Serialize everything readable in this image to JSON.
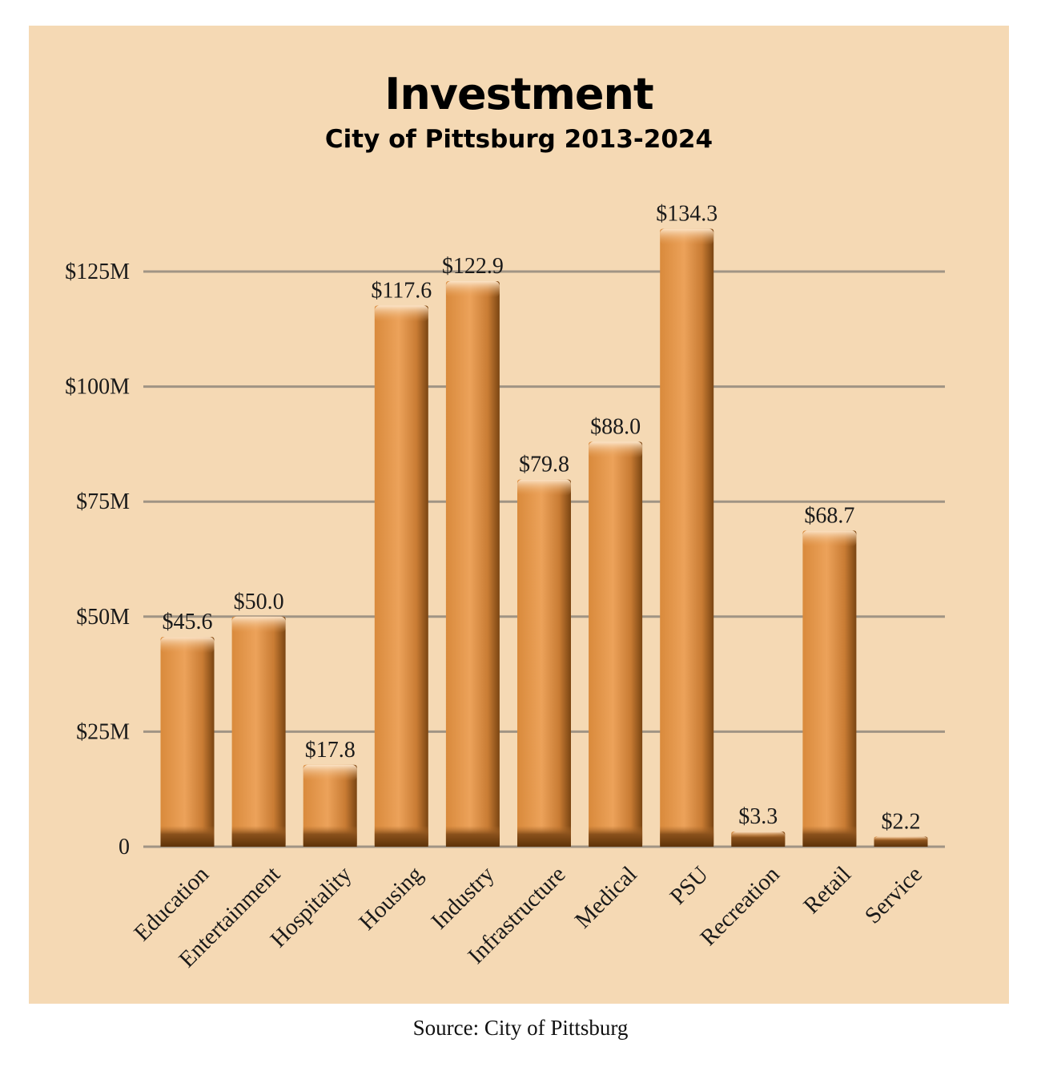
{
  "chart_data": {
    "type": "bar",
    "title": "Investment",
    "subtitle": "City of Pittsburg 2013-2024",
    "categories": [
      "Education",
      "Entertainment",
      "Hospitality",
      "Housing",
      "Industry",
      "Infrastructure",
      "Medical",
      "PSU",
      "Recreation",
      "Retail",
      "Service"
    ],
    "values": [
      45.6,
      50.0,
      17.8,
      117.6,
      122.9,
      79.8,
      88.0,
      134.3,
      3.3,
      68.7,
      2.2
    ],
    "data_labels": [
      "$45.6",
      "$50.0",
      "$17.8",
      "$117.6",
      "$122.9",
      "$79.8",
      "$88.0",
      "$134.3",
      "$3.3",
      "$68.7",
      "$2.2"
    ],
    "yticks": [
      0,
      25,
      50,
      75,
      100,
      125
    ],
    "ytick_labels": [
      "0",
      "$25M",
      "$50M",
      "$75M",
      "$100M",
      "$125M"
    ],
    "ylim": [
      0,
      135
    ],
    "grid": true,
    "bar_color": "#e0954a",
    "background_color": "#f5d9b4"
  },
  "source": "Source: City of Pittsburg"
}
